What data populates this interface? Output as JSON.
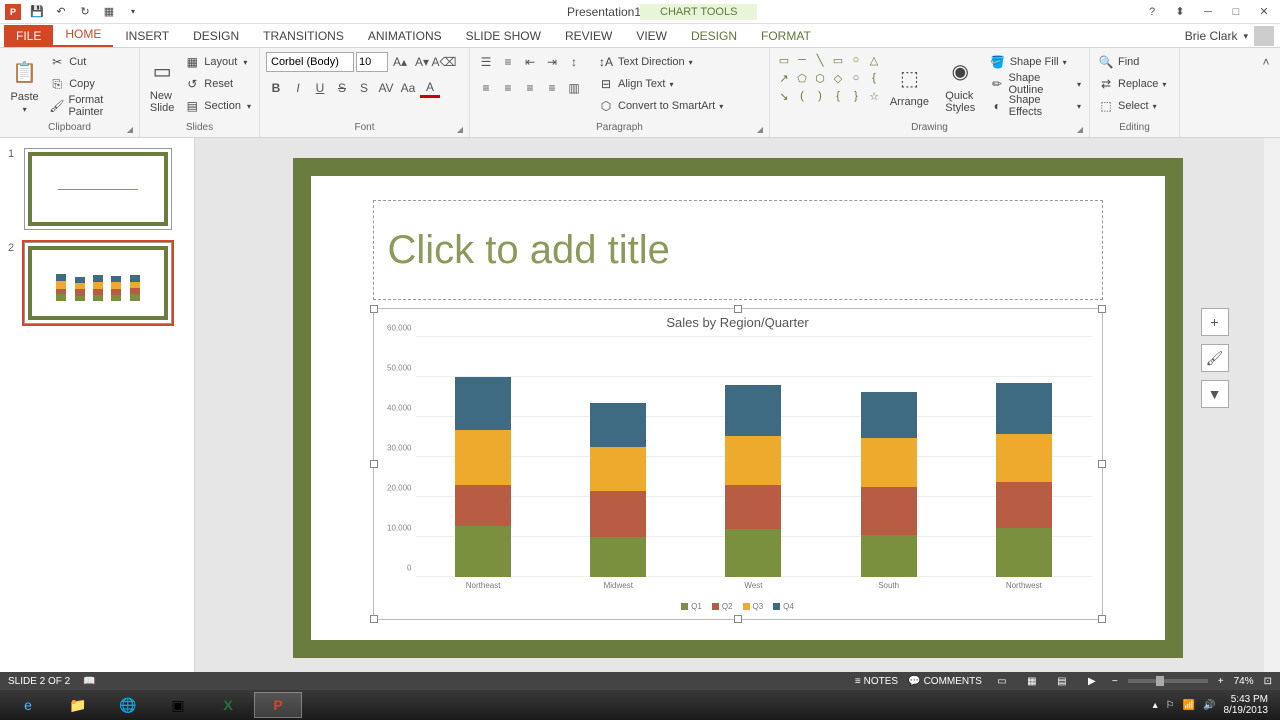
{
  "title": "Presentation1 - PowerPoint",
  "chart_tools_label": "CHART TOOLS",
  "user_name": "Brie Clark",
  "tabs": {
    "file": "FILE",
    "home": "HOME",
    "insert": "INSERT",
    "design": "DESIGN",
    "transitions": "TRANSITIONS",
    "animations": "ANIMATIONS",
    "slideshow": "SLIDE SHOW",
    "review": "REVIEW",
    "view": "VIEW",
    "ctx_design": "DESIGN",
    "ctx_format": "FORMAT"
  },
  "ribbon": {
    "clipboard": {
      "label": "Clipboard",
      "paste": "Paste",
      "cut": "Cut",
      "copy": "Copy",
      "format_painter": "Format Painter"
    },
    "slides": {
      "label": "Slides",
      "new_slide": "New\nSlide",
      "layout": "Layout",
      "reset": "Reset",
      "section": "Section"
    },
    "font": {
      "label": "Font",
      "name": "Corbel (Body)",
      "size": "10"
    },
    "paragraph": {
      "label": "Paragraph",
      "text_direction": "Text Direction",
      "align_text": "Align Text",
      "convert_smartart": "Convert to SmartArt"
    },
    "drawing": {
      "label": "Drawing",
      "arrange": "Arrange",
      "quick_styles": "Quick\nStyles",
      "shape_fill": "Shape Fill",
      "shape_outline": "Shape Outline",
      "shape_effects": "Shape Effects"
    },
    "editing": {
      "label": "Editing",
      "find": "Find",
      "replace": "Replace",
      "select": "Select"
    }
  },
  "slide": {
    "title_placeholder": "Click to add title",
    "border_color": "#6b7d3e"
  },
  "chart": {
    "type": "stacked-bar",
    "title": "Sales by Region/Quarter",
    "categories": [
      "Northeast",
      "Midwest",
      "West",
      "South",
      "Northwest"
    ],
    "ymax": 60000,
    "ytick_step": 10000,
    "ylabels": [
      "0",
      "10,000",
      "20,000",
      "30,000",
      "40,000",
      "50,000",
      "60,000"
    ],
    "series": [
      {
        "name": "Q1",
        "color": "#7a903f",
        "values": [
          14000,
          11000,
          13000,
          11500,
          13500
        ]
      },
      {
        "name": "Q2",
        "color": "#b85c44",
        "values": [
          11000,
          12500,
          12000,
          13000,
          12500
        ]
      },
      {
        "name": "Q3",
        "color": "#eeaa2c",
        "values": [
          15000,
          12000,
          13500,
          13500,
          13000
        ]
      },
      {
        "name": "Q4",
        "color": "#3e6a82",
        "values": [
          14500,
          12000,
          14000,
          12500,
          14000
        ]
      }
    ],
    "background": "#ffffff",
    "grid_color": "#eeeeee"
  },
  "thumbnails": {
    "slide1_num": "1",
    "slide2_num": "2"
  },
  "status": {
    "slide_info": "SLIDE 2 OF 2",
    "notes": "NOTES",
    "comments": "COMMENTS",
    "zoom": "74%"
  },
  "tray": {
    "time": "5:43 PM",
    "date": "8/19/2013"
  }
}
